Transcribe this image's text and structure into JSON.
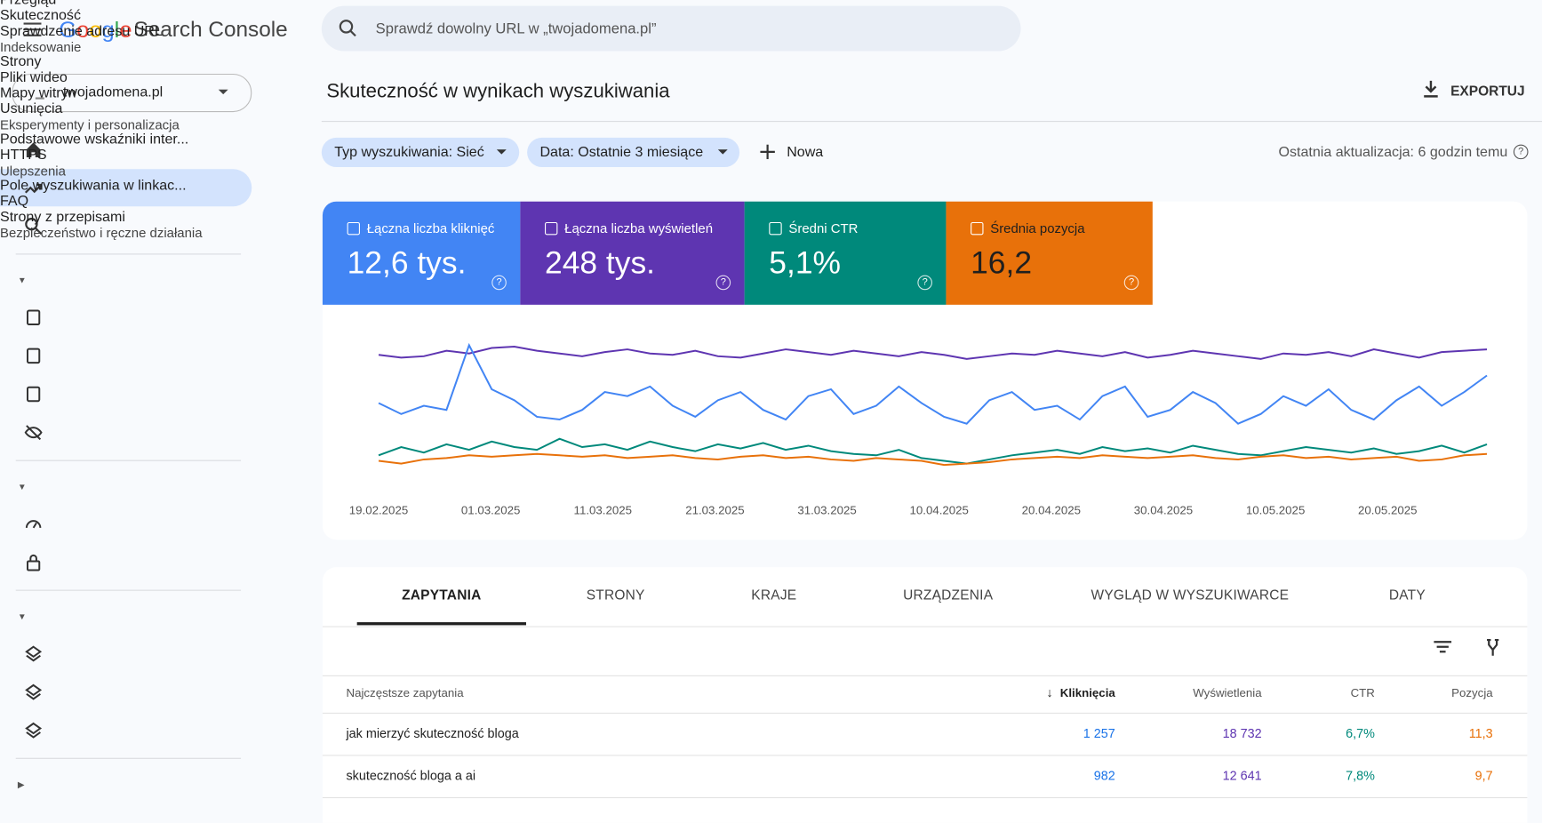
{
  "header": {
    "logo": "Google",
    "product": "Search Console",
    "search_placeholder": "Sprawdź dowolny URL w „twojadomena.pl”"
  },
  "sidebar": {
    "property": "twojadomena.pl",
    "top": [
      "Przegląd",
      "Skuteczność",
      "Sprawdzenie adresu URL"
    ],
    "sections": [
      {
        "title": "Indeksowanie",
        "items": [
          "Strony",
          "Pliki wideo",
          "Mapy witryn",
          "Usunięcia"
        ]
      },
      {
        "title": "Eksperymenty i personalizacja",
        "items": [
          "Podstawowe wskaźniki inter...",
          "HTTPS"
        ]
      },
      {
        "title": "Ulepszenia",
        "items": [
          "Pole wyszukiwania w linkac...",
          "FAQ",
          "Strony z przepisami"
        ]
      },
      {
        "title": "Bezpieczeństwo i ręczne działania",
        "items": []
      }
    ]
  },
  "main": {
    "title": "Skuteczność w wynikach wyszukiwania",
    "export": "EXPORTUJ",
    "filters": [
      "Typ wyszukiwania: Sieć",
      "Data: Ostatnie 3 miesiące"
    ],
    "new": "Nowa",
    "last_update": "Ostatnia aktualizacja: 6 godzin temu"
  },
  "cards": [
    {
      "label": "Łączna liczba kliknięć",
      "value": "12,6 tys.",
      "color": "#4285f4"
    },
    {
      "label": "Łączna liczba wyświetleń",
      "value": "248 tys.",
      "color": "#5e35b1"
    },
    {
      "label": "Średni CTR",
      "value": "5,1%",
      "color": "#00897b"
    },
    {
      "label": "Średnia pozycja",
      "value": "16,2",
      "color": "#e8710a"
    }
  ],
  "chart": {
    "type": "line",
    "xticks": [
      "19.02.2025",
      "01.03.2025",
      "11.03.2025",
      "21.03.2025",
      "31.03.2025",
      "10.04.2025",
      "20.04.2025",
      "30.04.2025",
      "10.05.2025",
      "20.05.2025"
    ],
    "series": [
      {
        "color": "#5e35b1",
        "values": [
          85,
          83,
          84,
          88,
          86,
          90,
          91,
          88,
          86,
          84,
          87,
          89,
          86,
          85,
          88,
          84,
          83,
          86,
          89,
          87,
          85,
          88,
          86,
          84,
          87,
          85,
          82,
          84,
          86,
          85,
          88,
          86,
          84,
          87,
          83,
          85,
          88,
          86,
          84,
          82,
          86,
          85,
          87,
          84,
          89,
          86,
          83,
          87,
          88,
          89
        ]
      },
      {
        "color": "#4285f4",
        "values": [
          50,
          42,
          48,
          45,
          92,
          60,
          52,
          40,
          38,
          45,
          58,
          55,
          62,
          48,
          40,
          52,
          58,
          45,
          38,
          55,
          60,
          42,
          48,
          62,
          50,
          40,
          35,
          52,
          58,
          45,
          48,
          38,
          55,
          62,
          40,
          45,
          58,
          50,
          35,
          42,
          55,
          48,
          60,
          45,
          38,
          52,
          62,
          48,
          58,
          70
        ]
      },
      {
        "color": "#00897b",
        "values": [
          12,
          18,
          14,
          20,
          16,
          22,
          18,
          16,
          24,
          18,
          20,
          16,
          22,
          18,
          15,
          20,
          17,
          21,
          16,
          19,
          15,
          13,
          12,
          16,
          10,
          8,
          6,
          9,
          12,
          14,
          16,
          13,
          18,
          15,
          17,
          14,
          19,
          16,
          13,
          12,
          15,
          18,
          16,
          14,
          17,
          13,
          15,
          19,
          14,
          20
        ]
      },
      {
        "color": "#e8710a",
        "values": [
          8,
          6,
          9,
          10,
          12,
          11,
          12,
          13,
          12,
          11,
          12,
          10,
          11,
          12,
          10,
          9,
          11,
          12,
          10,
          11,
          9,
          8,
          10,
          9,
          8,
          5,
          6,
          7,
          9,
          10,
          11,
          10,
          12,
          11,
          10,
          11,
          12,
          10,
          9,
          11,
          12,
          10,
          11,
          9,
          10,
          11,
          8,
          9,
          12,
          13
        ]
      }
    ],
    "ylim": [
      0,
      100
    ]
  },
  "tabs": [
    "ZAPYTANIA",
    "STRONY",
    "KRAJE",
    "URZĄDZENIA",
    "WYGLĄD W WYSZUKIWARCE",
    "DATY"
  ],
  "table": {
    "columns": [
      "Najczęstsze zapytania",
      "Kliknięcia",
      "Wyświetlenia",
      "CTR",
      "Pozycja"
    ],
    "rows": [
      [
        "jak mierzyć skuteczność bloga",
        "1 257",
        "18 732",
        "6,7%",
        "11,3"
      ],
      [
        "skuteczność bloga a ai",
        "982",
        "12 641",
        "7,8%",
        "9,7"
      ]
    ]
  }
}
